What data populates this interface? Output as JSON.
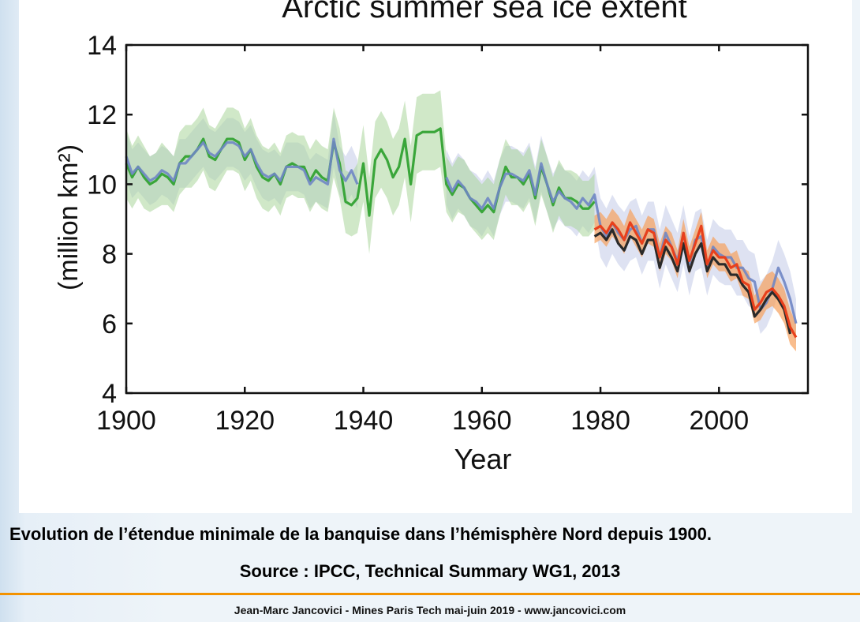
{
  "caption": {
    "line1": "Evolution de l’étendue minimale de la banquise dans l’hémisphère Nord depuis 1900.",
    "line2": "Source : IPCC, Technical Summary WG1, 2013"
  },
  "footer": {
    "text": "Jean-Marc Jancovici - Mines Paris Tech mai-juin 2019 - www.jancovici.com"
  },
  "colors": {
    "accent_rule": "#f39200",
    "green": "#3aa63a",
    "green_band": "#a9d69a",
    "blue": "#6f86c4",
    "blue_band": "#c3cbe8",
    "black": "#2a2a2a",
    "red": "#e8401c",
    "orange_band": "#f6a15c"
  },
  "chart_data": {
    "type": "line",
    "title": "Arctic summer sea ice extent",
    "xlabel": "Year",
    "ylabel": "(million km²)",
    "xlim": [
      1900,
      2015
    ],
    "ylim": [
      4,
      14
    ],
    "xticks": [
      1900,
      1920,
      1940,
      1960,
      1980,
      2000
    ],
    "yticks": [
      4,
      6,
      8,
      10,
      12,
      14
    ],
    "grid": false,
    "legend": "none",
    "series": [
      {
        "x": [
          1900,
          1901,
          1902,
          1903,
          1904,
          1905,
          1906,
          1907,
          1908,
          1909,
          1910,
          1911,
          1912,
          1913,
          1914,
          1915,
          1916,
          1917,
          1918,
          1919,
          1920,
          1921,
          1922,
          1923,
          1924,
          1925,
          1926,
          1927,
          1928,
          1929,
          1930,
          1931,
          1932,
          1933,
          1934,
          1935,
          1936,
          1937,
          1938,
          1939,
          1940,
          1941,
          1942,
          1943,
          1944,
          1945,
          1946,
          1947,
          1948,
          1949,
          1950,
          1951,
          1952,
          1953,
          1954,
          1955,
          1956,
          1957,
          1958,
          1959,
          1960,
          1961,
          1962,
          1963,
          1964,
          1965,
          1966,
          1967,
          1968,
          1969,
          1970,
          1971,
          1972,
          1973,
          1974,
          1975,
          1976,
          1977,
          1978,
          1979
        ],
        "values": [
          10.6,
          10.2,
          10.5,
          10.2,
          10.0,
          10.1,
          10.3,
          10.2,
          10.0,
          10.6,
          10.8,
          10.8,
          11.0,
          11.3,
          10.8,
          10.7,
          11.0,
          11.3,
          11.3,
          11.2,
          10.7,
          11.0,
          10.5,
          10.2,
          10.1,
          10.3,
          10.0,
          10.5,
          10.6,
          10.5,
          10.5,
          10.1,
          10.4,
          10.2,
          10.1,
          11.2,
          10.6,
          9.5,
          9.4,
          9.6,
          10.6,
          9.1,
          10.7,
          11.0,
          10.7,
          10.2,
          10.5,
          11.3,
          10.0,
          11.4,
          11.5,
          11.5,
          11.5,
          11.6,
          10.0,
          9.7,
          10.0,
          9.9,
          9.6,
          9.4,
          9.2,
          9.4,
          9.2,
          9.9,
          10.5,
          10.2,
          10.2,
          10.0,
          10.3,
          9.6,
          10.5,
          10.0,
          9.4,
          9.9,
          9.6,
          9.6,
          9.5,
          9.3,
          9.3,
          9.5
        ],
        "lower": [
          9.6,
          9.3,
          9.6,
          9.3,
          9.2,
          9.3,
          9.4,
          9.4,
          9.2,
          9.7,
          9.9,
          9.9,
          10.1,
          10.4,
          9.9,
          9.8,
          10.1,
          10.4,
          10.4,
          10.3,
          9.8,
          10.1,
          9.6,
          9.3,
          9.2,
          9.4,
          9.1,
          9.6,
          9.7,
          9.6,
          9.6,
          9.2,
          9.5,
          9.3,
          9.2,
          10.2,
          9.6,
          8.6,
          8.5,
          8.6,
          9.5,
          8.0,
          9.6,
          9.9,
          9.6,
          9.1,
          9.4,
          10.2,
          8.9,
          10.3,
          10.4,
          10.4,
          10.4,
          10.5,
          9.2,
          8.9,
          9.2,
          9.1,
          8.8,
          8.6,
          8.4,
          8.6,
          8.4,
          9.1,
          9.7,
          9.4,
          9.4,
          9.2,
          9.5,
          8.8,
          9.7,
          9.2,
          8.6,
          9.1,
          8.8,
          8.8,
          8.7,
          8.5,
          8.5,
          8.7
        ],
        "upper": [
          11.6,
          11.1,
          11.4,
          11.1,
          10.8,
          10.9,
          11.2,
          11.0,
          10.8,
          11.5,
          11.7,
          11.7,
          11.9,
          12.2,
          11.7,
          11.6,
          11.9,
          12.2,
          12.2,
          12.1,
          11.6,
          11.9,
          11.4,
          11.1,
          11.0,
          11.2,
          10.9,
          11.4,
          11.5,
          11.4,
          11.4,
          11.0,
          11.3,
          11.1,
          11.0,
          12.2,
          11.6,
          10.4,
          10.3,
          10.6,
          11.7,
          10.2,
          11.8,
          12.1,
          11.8,
          11.3,
          11.6,
          12.4,
          11.1,
          12.5,
          12.6,
          12.6,
          12.6,
          12.7,
          10.8,
          10.5,
          10.8,
          10.7,
          10.4,
          10.2,
          10.0,
          10.2,
          10.0,
          10.7,
          11.3,
          11.0,
          11.0,
          10.8,
          11.1,
          10.4,
          11.3,
          10.8,
          10.2,
          10.7,
          10.4,
          10.4,
          10.3,
          10.1,
          10.1,
          10.3
        ],
        "color": "#3aa63a",
        "band_color": "#a9d69a"
      },
      {
        "x": [
          1900,
          1901,
          1902,
          1903,
          1904,
          1905,
          1906,
          1907,
          1908,
          1909,
          1910,
          1911,
          1912,
          1913,
          1914,
          1915,
          1916,
          1917,
          1918,
          1919,
          1920,
          1921,
          1922,
          1923,
          1924,
          1925,
          1926,
          1927,
          1928,
          1929,
          1930,
          1931,
          1932,
          1933,
          1934,
          1935,
          1936,
          1937,
          1938,
          1939,
          1940,
          1941,
          1942,
          1943,
          1944,
          1945,
          1946,
          1947,
          1948,
          1949,
          1950,
          1951,
          1952,
          1953,
          1954,
          1955,
          1956,
          1957,
          1958,
          1959,
          1960,
          1961,
          1962,
          1963,
          1964,
          1965,
          1966,
          1967,
          1968,
          1969,
          1970,
          1971,
          1972,
          1973,
          1974,
          1975,
          1976,
          1977,
          1978,
          1979,
          1980,
          1981,
          1982,
          1983,
          1984,
          1985,
          1986,
          1987,
          1988,
          1989,
          1990,
          1991,
          1992,
          1993,
          1994,
          1995,
          1996,
          1997,
          1998,
          1999,
          2000,
          2001,
          2002,
          2003,
          2004,
          2005,
          2006,
          2007,
          2008,
          2009,
          2010,
          2011,
          2012,
          2013
        ],
        "values": [
          10.8,
          10.3,
          10.5,
          10.3,
          10.1,
          10.2,
          10.4,
          10.3,
          10.1,
          10.6,
          10.6,
          10.8,
          11.0,
          11.2,
          10.9,
          10.8,
          11.0,
          11.2,
          11.2,
          11.1,
          10.8,
          11.0,
          10.6,
          10.3,
          10.2,
          10.3,
          10.1,
          10.5,
          10.5,
          10.5,
          10.4,
          10.0,
          10.2,
          10.1,
          10.0,
          11.3,
          10.4,
          10.1,
          10.4,
          10.0,
          null,
          null,
          null,
          null,
          null,
          null,
          null,
          null,
          null,
          null,
          null,
          null,
          null,
          null,
          10.2,
          9.8,
          10.1,
          9.9,
          9.6,
          9.5,
          9.3,
          9.6,
          9.3,
          9.9,
          10.3,
          10.3,
          10.2,
          10.1,
          10.4,
          9.7,
          10.6,
          10.0,
          9.5,
          9.8,
          9.6,
          9.5,
          9.3,
          9.6,
          9.4,
          9.7,
          8.8,
          8.5,
          8.9,
          8.6,
          8.4,
          8.7,
          8.8,
          8.3,
          8.7,
          8.7,
          7.9,
          8.6,
          8.2,
          7.8,
          8.6,
          7.7,
          8.4,
          8.5,
          7.6,
          8.2,
          8.0,
          7.9,
          7.9,
          7.6,
          7.6,
          7.3,
          7.2,
          6.4,
          6.6,
          7.0,
          7.6,
          7.2,
          6.7,
          6.0
        ],
        "lower": [
          10.1,
          9.6,
          9.8,
          9.6,
          9.4,
          9.5,
          9.7,
          9.6,
          9.4,
          9.9,
          9.9,
          10.1,
          10.3,
          10.5,
          10.2,
          10.1,
          10.3,
          10.5,
          10.5,
          10.4,
          10.1,
          10.3,
          9.9,
          9.6,
          9.5,
          9.6,
          9.4,
          9.8,
          9.8,
          9.8,
          9.7,
          9.3,
          9.5,
          9.4,
          9.3,
          10.5,
          9.7,
          9.4,
          9.7,
          9.3,
          null,
          null,
          null,
          null,
          null,
          null,
          null,
          null,
          null,
          null,
          null,
          null,
          null,
          null,
          9.4,
          9.0,
          9.3,
          9.1,
          8.8,
          8.7,
          8.5,
          8.8,
          8.5,
          9.1,
          9.5,
          9.5,
          9.4,
          9.3,
          9.6,
          8.9,
          9.8,
          9.2,
          8.7,
          9.0,
          8.8,
          8.7,
          8.5,
          8.8,
          8.6,
          8.9,
          7.9,
          7.6,
          8.0,
          7.7,
          7.5,
          7.8,
          7.9,
          7.4,
          7.8,
          7.8,
          7.0,
          7.7,
          7.3,
          6.9,
          7.7,
          6.8,
          7.5,
          7.6,
          6.8,
          7.4,
          7.2,
          7.1,
          7.1,
          6.8,
          6.8,
          6.5,
          6.4,
          5.7,
          5.9,
          6.3,
          6.9,
          6.5,
          6.0,
          5.4
        ],
        "upper": [
          11.5,
          11.0,
          11.2,
          11.0,
          10.8,
          10.9,
          11.1,
          11.0,
          10.8,
          11.3,
          11.3,
          11.5,
          11.7,
          11.9,
          11.6,
          11.5,
          11.7,
          11.9,
          11.9,
          11.8,
          11.5,
          11.7,
          11.3,
          11.0,
          10.9,
          11.0,
          10.8,
          11.2,
          11.2,
          11.2,
          11.1,
          10.7,
          10.9,
          10.8,
          10.7,
          12.1,
          11.1,
          10.8,
          11.1,
          10.7,
          null,
          null,
          null,
          null,
          null,
          null,
          null,
          null,
          null,
          null,
          null,
          null,
          null,
          null,
          11.0,
          10.6,
          10.9,
          10.7,
          10.4,
          10.3,
          10.1,
          10.4,
          10.1,
          10.7,
          11.1,
          11.1,
          11.0,
          10.9,
          11.2,
          10.5,
          11.4,
          10.8,
          10.3,
          10.6,
          10.4,
          10.3,
          10.1,
          10.4,
          10.2,
          10.5,
          9.6,
          9.3,
          9.7,
          9.4,
          9.2,
          9.5,
          9.6,
          9.1,
          9.5,
          9.5,
          8.7,
          9.4,
          9.0,
          8.6,
          9.4,
          8.5,
          9.2,
          9.3,
          8.4,
          9.0,
          8.8,
          8.7,
          8.7,
          8.4,
          8.4,
          8.1,
          8.0,
          7.2,
          7.4,
          7.8,
          8.4,
          8.0,
          7.5,
          6.7
        ],
        "color": "#6f86c4",
        "band_color": "#c3cbe8"
      },
      {
        "x": [
          1979,
          1980,
          1981,
          1982,
          1983,
          1984,
          1985,
          1986,
          1987,
          1988,
          1989,
          1990,
          1991,
          1992,
          1993,
          1994,
          1995,
          1996,
          1997,
          1998,
          1999,
          2000,
          2001,
          2002,
          2003,
          2004,
          2005,
          2006,
          2007,
          2008,
          2009,
          2010,
          2011,
          2012,
          2013
        ],
        "values": [
          8.5,
          8.6,
          8.4,
          8.7,
          8.3,
          8.1,
          8.5,
          8.4,
          8.0,
          8.4,
          8.4,
          7.6,
          8.2,
          7.9,
          7.5,
          8.3,
          7.5,
          8.0,
          8.3,
          7.5,
          7.9,
          7.7,
          7.7,
          7.4,
          7.4,
          7.1,
          6.9,
          6.2,
          6.4,
          6.7,
          6.9,
          6.7,
          6.4,
          5.7,
          null
        ],
        "color": "#2a2a2a"
      },
      {
        "x": [
          1979,
          1980,
          1981,
          1982,
          1983,
          1984,
          1985,
          1986,
          1987,
          1988,
          1989,
          1990,
          1991,
          1992,
          1993,
          1994,
          1995,
          1996,
          1997,
          1998,
          1999,
          2000,
          2001,
          2002,
          2003,
          2004,
          2005,
          2006,
          2007,
          2008,
          2009,
          2010,
          2011,
          2012,
          2013
        ],
        "values": [
          8.7,
          8.8,
          8.6,
          8.9,
          8.7,
          8.4,
          8.9,
          8.6,
          8.3,
          8.7,
          8.6,
          7.9,
          8.4,
          8.2,
          7.7,
          8.6,
          7.8,
          8.3,
          8.8,
          7.7,
          8.1,
          7.9,
          7.9,
          7.6,
          7.7,
          7.2,
          7.1,
          6.4,
          6.6,
          6.9,
          7.0,
          6.8,
          6.5,
          5.9,
          5.6
        ],
        "lower": [
          8.3,
          8.4,
          8.2,
          8.5,
          8.3,
          8.0,
          8.5,
          8.2,
          7.9,
          8.3,
          8.2,
          7.5,
          8.0,
          7.8,
          7.3,
          8.2,
          7.4,
          7.9,
          8.4,
          7.3,
          7.7,
          7.5,
          7.5,
          7.2,
          7.3,
          6.8,
          6.7,
          6.0,
          6.1,
          6.4,
          6.5,
          6.3,
          6.0,
          5.4,
          5.2
        ],
        "upper": [
          9.1,
          9.2,
          9.0,
          9.3,
          9.1,
          8.8,
          9.3,
          9.0,
          8.7,
          9.1,
          9.0,
          8.3,
          8.8,
          8.6,
          8.1,
          9.0,
          8.2,
          8.7,
          9.2,
          8.1,
          8.5,
          8.3,
          8.3,
          8.0,
          8.1,
          7.6,
          7.5,
          6.8,
          7.1,
          7.4,
          7.5,
          7.3,
          7.0,
          6.4,
          6.0
        ],
        "color": "#e8401c",
        "band_color": "#f6a15c"
      }
    ]
  }
}
